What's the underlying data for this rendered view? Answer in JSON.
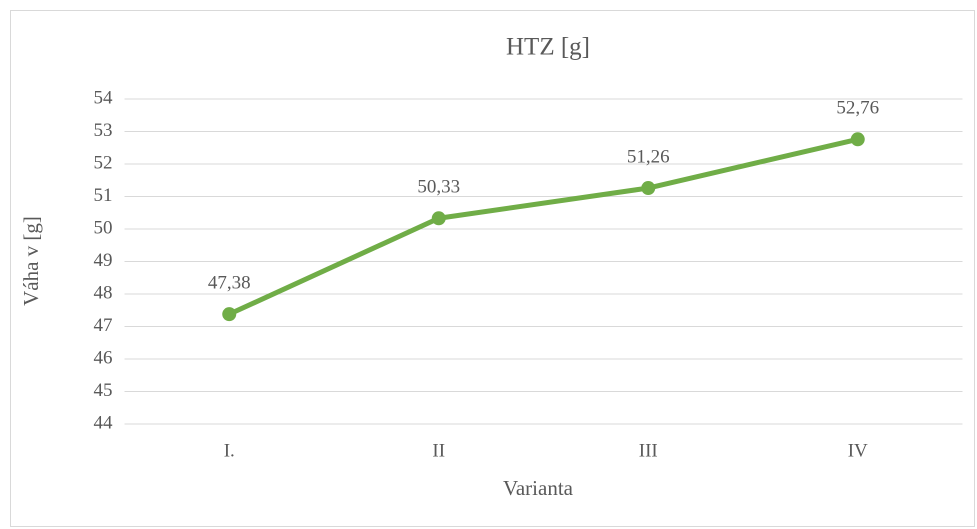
{
  "chart_data": {
    "type": "line",
    "title": "HTZ [g]",
    "x_label": "Varianta",
    "y_label": "Váha v [g]",
    "categories": [
      "I.",
      "II",
      "III",
      "IV"
    ],
    "series": [
      {
        "name": "HTZ",
        "color": "#70ad47",
        "values": [
          47.38,
          50.33,
          51.26,
          52.76
        ],
        "value_labels": [
          "47,38",
          "50,33",
          "51,26",
          "52,76"
        ]
      }
    ],
    "ylim": [
      44,
      54
    ],
    "yticks": [
      44,
      45,
      46,
      47,
      48,
      49,
      50,
      51,
      52,
      53,
      54
    ],
    "grid": true
  }
}
